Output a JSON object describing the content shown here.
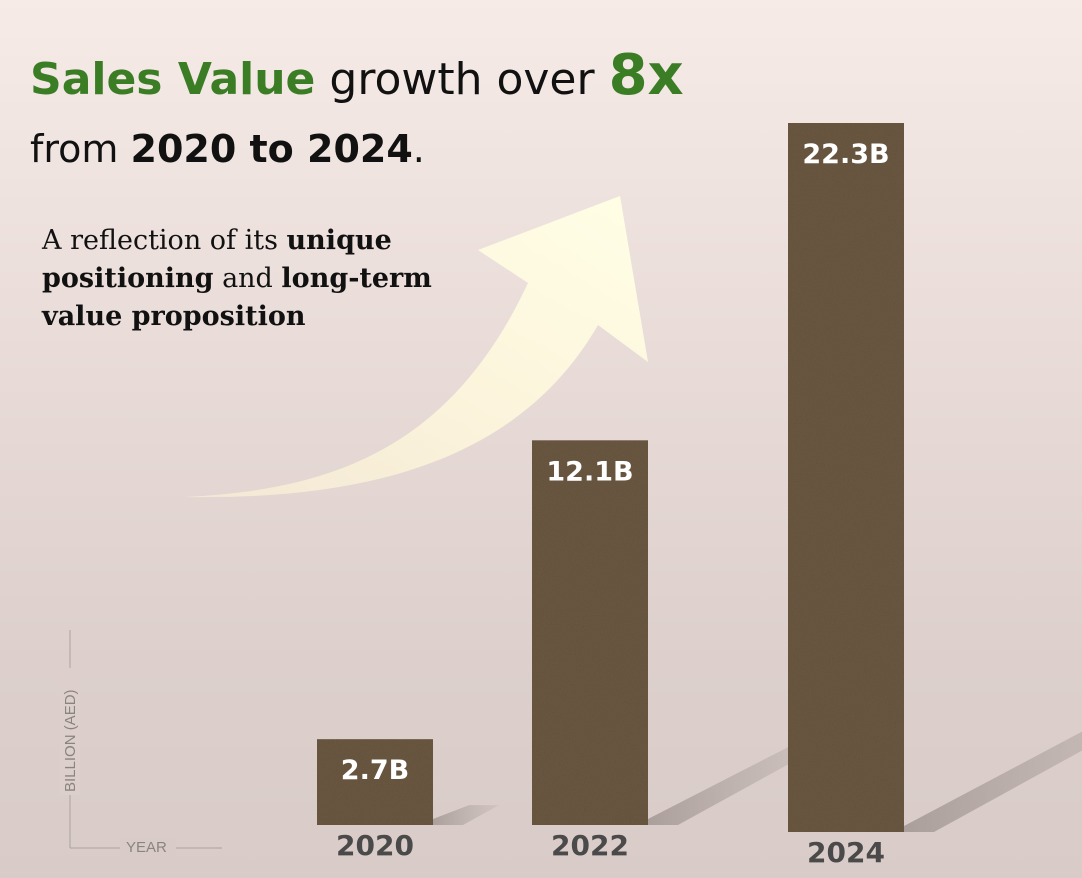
{
  "headline": {
    "part1": "Sales Value",
    "part2": " growth over ",
    "part3": "8x",
    "part4": "from ",
    "part5": "2020 to 2024",
    "part6": "."
  },
  "subtext": {
    "s1": "A reflection of its ",
    "s2": "unique positioning",
    "s3": " and ",
    "s4": "long-term value proposition"
  },
  "chart_data": {
    "type": "bar",
    "categories": [
      "2020",
      "2022",
      "2024"
    ],
    "values": [
      2.7,
      12.1,
      22.3
    ],
    "data_labels": [
      "2.7B",
      "12.1B",
      "22.3B"
    ],
    "xlabel": "YEAR",
    "ylabel": "BILLION (AED)",
    "colors": {
      "bar": "#6b5842",
      "bar_light": "#8a7558",
      "tick": "#4a4a4a",
      "axis": "#8a8480"
    },
    "icons": [
      "growth-arrow-icon"
    ]
  }
}
